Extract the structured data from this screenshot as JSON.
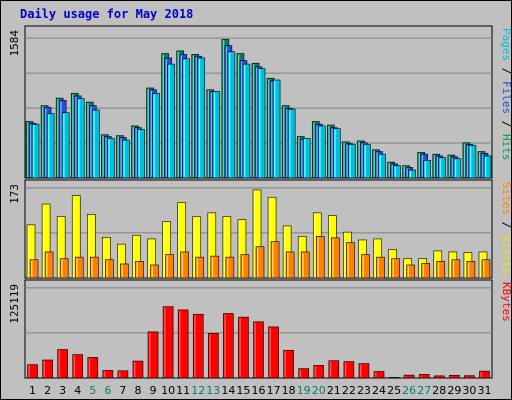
{
  "chart_data": {
    "type": "bar",
    "title": "Daily usage for May 2018",
    "categories": [
      "1",
      "2",
      "3",
      "4",
      "5",
      "6",
      "7",
      "8",
      "9",
      "10",
      "11",
      "12",
      "13",
      "14",
      "15",
      "16",
      "17",
      "18",
      "19",
      "20",
      "21",
      "22",
      "23",
      "24",
      "25",
      "26",
      "27",
      "28",
      "29",
      "30",
      "31"
    ],
    "weekend_categories": [
      "5",
      "6",
      "12",
      "13",
      "19",
      "20",
      "26",
      "27"
    ],
    "panels": [
      {
        "id": "pages",
        "ymax_label": "1584",
        "ymax": 1584,
        "label_parts": [
          "Pages",
          " / ",
          "Files",
          " / ",
          "Hits"
        ],
        "label_colors": [
          "#00c0e0",
          "#000000",
          "#2050e0",
          "#000000",
          "#00a050"
        ],
        "series": [
          {
            "name": "Hits",
            "color": "#008060",
            "values": [
              640,
              820,
              905,
              960,
              860,
              490,
              480,
              590,
              1020,
              1410,
              1440,
              1400,
              1000,
              1570,
              1410,
              1300,
              1130,
              820,
              470,
              640,
              600,
              410,
              420,
              320,
              180,
              140,
              290,
              270,
              260,
              400,
              300
            ]
          },
          {
            "name": "Files",
            "color": "#2050e0",
            "values": [
              620,
              800,
              880,
              930,
              820,
              470,
              460,
              570,
              1000,
              1360,
              1400,
              1380,
              980,
              1500,
              1330,
              1260,
              1100,
              790,
              440,
              610,
              570,
              390,
              400,
              300,
              160,
              120,
              270,
              250,
              240,
              380,
              280
            ]
          },
          {
            "name": "Pages",
            "color": "#00c0e0",
            "values": [
              610,
              730,
              740,
              900,
              770,
              450,
              430,
              550,
              960,
              1290,
              1350,
              1360,
              980,
              1430,
              1290,
              1240,
              1110,
              780,
              450,
              590,
              560,
              380,
              380,
              270,
              140,
              90,
              200,
              230,
              220,
              370,
              250
            ]
          }
        ]
      },
      {
        "id": "visits",
        "ymax_label": "173",
        "ymax": 173,
        "label_parts": [
          "Sites",
          " / ",
          "Visits"
        ],
        "label_colors": [
          "#ff8000",
          "#000000",
          "#f0e000"
        ],
        "series": [
          {
            "name": "Visits",
            "color": "#ffff00",
            "values": [
              102,
              142,
              118,
              158,
              122,
              78,
              65,
              82,
              75,
              108,
              145,
              118,
              125,
              118,
              112,
              169,
              155,
              100,
              80,
              125,
              120,
              88,
              73,
              75,
              55,
              37,
              37,
              52,
              50,
              49,
              50
            ]
          },
          {
            "name": "Sites",
            "color": "#ff8000",
            "values": [
              35,
              50,
              37,
              40,
              40,
              35,
              27,
              32,
              25,
              45,
              50,
              40,
              42,
              40,
              45,
              60,
              70,
              50,
              50,
              80,
              77,
              68,
              45,
              40,
              37,
              25,
              28,
              32,
              35,
              32,
              35
            ]
          }
        ]
      },
      {
        "id": "kbytes",
        "ymax_label": "125119",
        "ymax": 125119,
        "label_parts": [
          "KBytes"
        ],
        "label_colors": [
          "#ff0000"
        ],
        "series": [
          {
            "name": "KBytes",
            "color": "#ff0000",
            "values": [
              18500,
              25000,
              39500,
              32500,
              28500,
              10500,
              10000,
              23500,
              64000,
              99000,
              94500,
              88500,
              62000,
              89500,
              84500,
              78000,
              71000,
              38500,
              13000,
              17500,
              24000,
              22800,
              20000,
              9000,
              900,
              4000,
              5000,
              3000,
              3700,
              3200,
              9500
            ]
          }
        ]
      }
    ]
  }
}
